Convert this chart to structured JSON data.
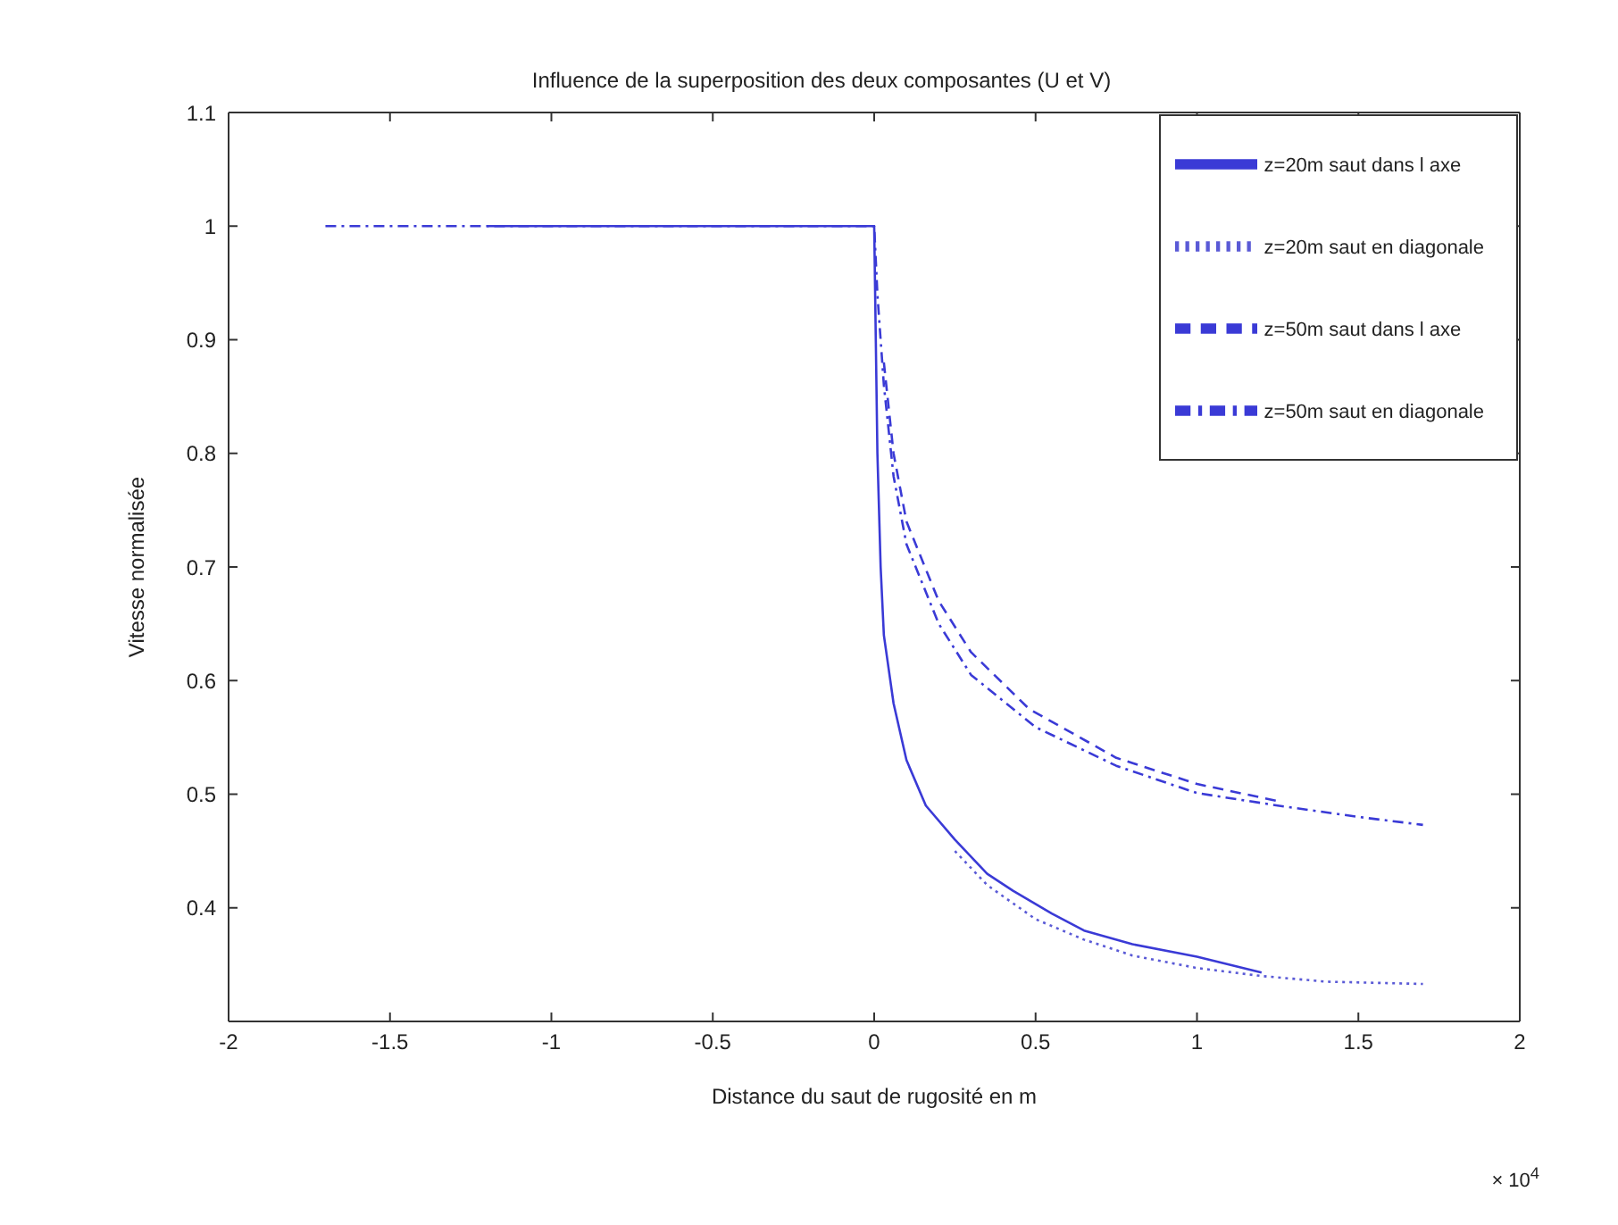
{
  "chart_data": {
    "type": "line",
    "title": "Influence de la superposition des deux composantes (U et V)",
    "xlabel": "Distance du saut de rugosité en m",
    "ylabel": "Vitesse normalisée",
    "annotations": [
      "× 10$^{4}$"
    ],
    "xlim": [
      -2,
      2
    ],
    "xticks": [
      -2,
      -1.5,
      -1,
      -0.5,
      0,
      0.5,
      1,
      1.5,
      2
    ],
    "ylim": [
      0.3,
      1.1
    ],
    "yticks": [
      0.4,
      0.5,
      0.6,
      0.7,
      0.8,
      0.9,
      1,
      1.1
    ],
    "grid": false,
    "legend": "top right",
    "marker": "none",
    "series": [
      {
        "name": "z=20m saut dans l axe",
        "color": "#3a3ad6",
        "line_style": "solid",
        "x": [
          -1.2,
          0,
          0.005,
          0.01,
          0.02,
          0.03,
          0.06,
          0.1,
          0.16,
          0.25,
          0.35,
          0.43,
          0.55,
          0.65,
          0.8,
          1.0,
          1.2
        ],
        "values": [
          1,
          1,
          0.9,
          0.8,
          0.7,
          0.64,
          0.58,
          0.53,
          0.49,
          0.46,
          0.43,
          0.415,
          0.395,
          0.38,
          0.368,
          0.357,
          0.343
        ]
      },
      {
        "name": "z=20m saut en diagonale",
        "color": "#5a5ad6",
        "line_style": "dotted",
        "x": [
          0.25,
          0.35,
          0.5,
          0.65,
          0.8,
          1.0,
          1.2,
          1.4,
          1.7
        ],
        "values": [
          0.45,
          0.42,
          0.39,
          0.372,
          0.358,
          0.347,
          0.34,
          0.335,
          0.333
        ]
      },
      {
        "name": "z=50m saut dans l axe",
        "color": "#3a3ad6",
        "line_style": "dashed",
        "x": [
          0.03,
          0.06,
          0.1,
          0.2,
          0.3,
          0.48,
          0.75,
          1.0,
          1.25
        ],
        "values": [
          0.88,
          0.8,
          0.74,
          0.67,
          0.625,
          0.575,
          0.532,
          0.509,
          0.494
        ]
      },
      {
        "name": "z=50m saut en diagonale",
        "color": "#3a3ad6",
        "line_style": "dashdot",
        "x": [
          -1.7,
          0,
          0.01,
          0.03,
          0.06,
          0.1,
          0.2,
          0.3,
          0.5,
          0.75,
          1.0,
          1.25,
          1.5,
          1.7
        ],
        "values": [
          1,
          1,
          0.94,
          0.86,
          0.78,
          0.72,
          0.65,
          0.605,
          0.559,
          0.525,
          0.501,
          0.49,
          0.48,
          0.473
        ]
      }
    ]
  }
}
